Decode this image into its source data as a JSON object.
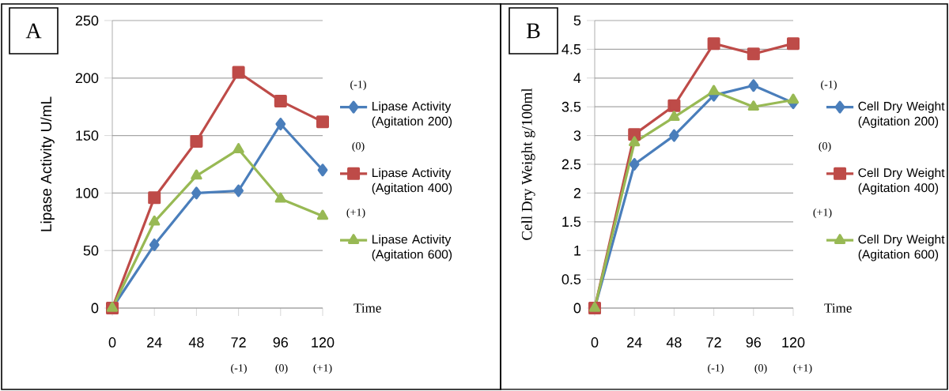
{
  "chart_data": [
    {
      "type": "line",
      "xlabel": "Time",
      "ylabel": "Lipase Activity U/mL",
      "x": [
        0,
        24,
        48,
        72,
        96,
        120
      ],
      "xlim": [
        0,
        120
      ],
      "xticks": [
        0,
        24,
        48,
        72,
        96,
        120
      ],
      "ylim": [
        0,
        250
      ],
      "yticks": [
        0,
        50,
        100,
        150,
        200,
        250
      ],
      "grid": "y",
      "legend": "right",
      "series": [
        {
          "name": "Lipase Activity (Agitation 200)",
          "color": "#4a7ebb",
          "marker": "diamond",
          "values": [
            0,
            55,
            100,
            102,
            160,
            120
          ]
        },
        {
          "name": "Lipase Activity (Agitation 400)",
          "color": "#be4b48",
          "marker": "square",
          "values": [
            0,
            96,
            145,
            205,
            180,
            162
          ]
        },
        {
          "name": "Lipase Activity (Agitation 600)",
          "color": "#98b954",
          "marker": "triangle",
          "values": [
            0,
            75,
            115,
            138,
            95,
            80
          ]
        }
      ],
      "annotations": [
        "A",
        "(-1)",
        "(0)",
        "(+1)",
        "(-1)",
        "(0)",
        "(+1)"
      ]
    },
    {
      "type": "line",
      "xlabel": "Time",
      "ylabel": "Cell Dry Weight g/100ml",
      "x": [
        0,
        24,
        48,
        72,
        96,
        120
      ],
      "xlim": [
        0,
        120
      ],
      "xticks": [
        0,
        24,
        48,
        72,
        96,
        120
      ],
      "ylim": [
        0,
        5
      ],
      "yticks": [
        0,
        0.5,
        1,
        1.5,
        2,
        2.5,
        3,
        3.5,
        4,
        4.5,
        5
      ],
      "grid": "y",
      "legend": "right",
      "series": [
        {
          "name": "Cell Dry Weight (Agitation 200)",
          "color": "#4a7ebb",
          "marker": "diamond",
          "values": [
            0,
            2.5,
            3.0,
            3.7,
            3.87,
            3.57
          ]
        },
        {
          "name": "Cell Dry Weight (Agitation 400)",
          "color": "#be4b48",
          "marker": "square",
          "values": [
            0,
            3.02,
            3.52,
            4.6,
            4.42,
            4.6
          ]
        },
        {
          "name": "Cell Dry Weight (Agitation 600)",
          "color": "#98b954",
          "marker": "triangle",
          "values": [
            0,
            2.88,
            3.32,
            3.77,
            3.5,
            3.62
          ]
        }
      ],
      "annotations": [
        "B",
        "(-1)",
        "(0)",
        "(+1)",
        "(-1)",
        "(0)",
        "(+1)"
      ]
    }
  ]
}
